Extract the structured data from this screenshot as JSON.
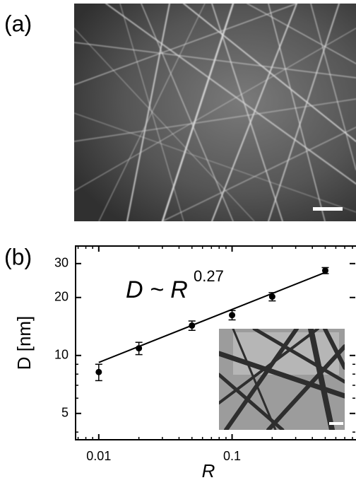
{
  "panels": [
    {
      "label": "(a)"
    },
    {
      "label": "(b)"
    }
  ],
  "chart_data": {
    "type": "scatter",
    "xscale": "log",
    "yscale": "log",
    "xlabel": "R",
    "ylabel": "D [nm]",
    "annotation": {
      "base": "D ~ R",
      "exponent": "0.27"
    },
    "xlim": [
      0.0067,
      0.84
    ],
    "ylim": [
      3.65,
      37
    ],
    "xticks": [
      0.01,
      0.1
    ],
    "yticks": [
      5,
      10,
      20,
      30
    ],
    "series": [
      {
        "color": "#000000",
        "x": [
          0.01,
          0.02,
          0.05,
          0.1,
          0.2,
          0.5
        ],
        "values": [
          8.2,
          10.9,
          14.3,
          16.2,
          20.2,
          27.6
        ],
        "errors": [
          0.8,
          0.8,
          0.8,
          0.9,
          1.0,
          1.0
        ]
      }
    ],
    "fit": {
      "color": "#000000",
      "x": [
        0.01,
        0.5
      ],
      "values": [
        9.2,
        27
      ]
    }
  }
}
